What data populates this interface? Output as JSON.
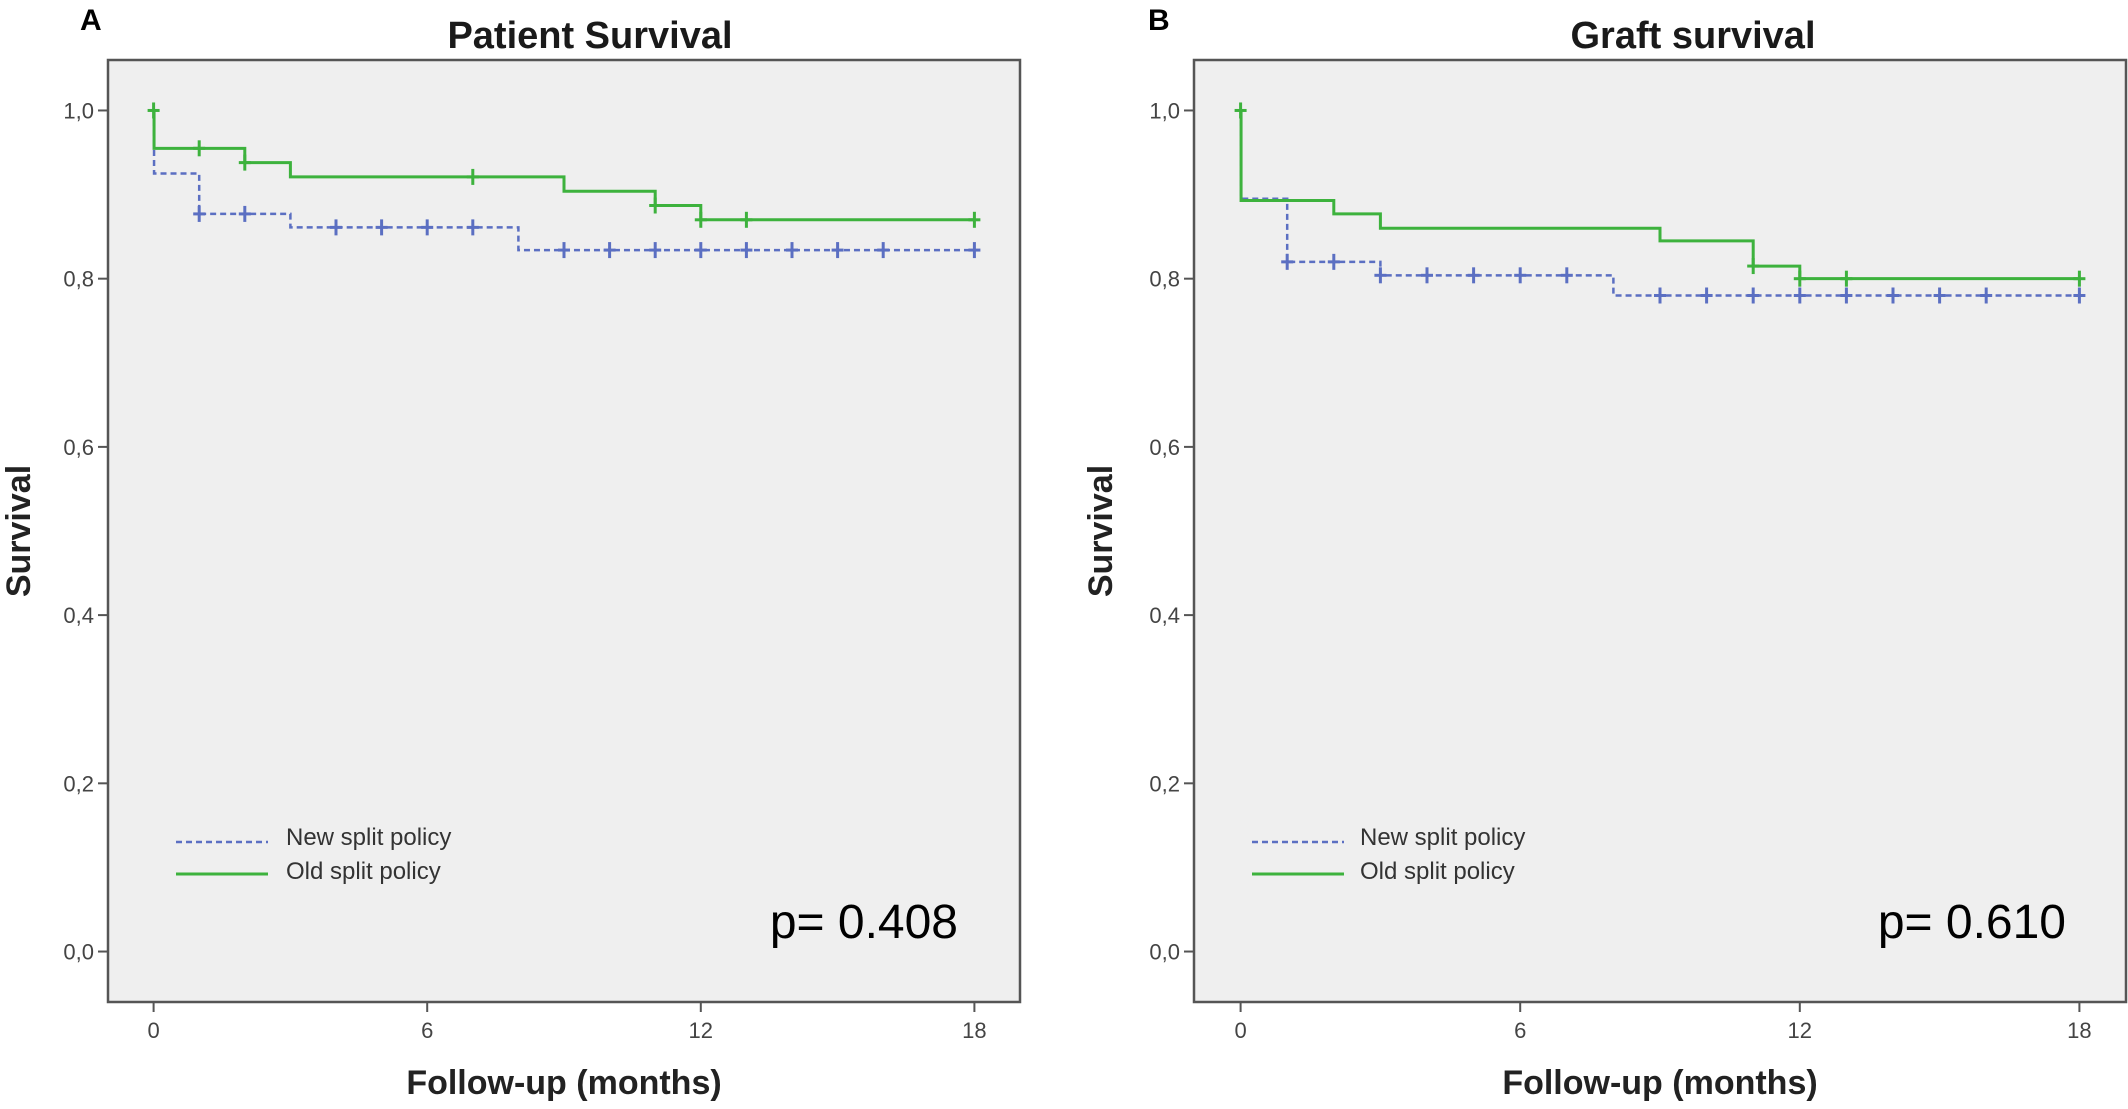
{
  "chart_data": [
    {
      "type": "line",
      "subtype": "kaplan-meier step",
      "panel": "A",
      "title": "Patient Survival",
      "xlabel": "Follow-up (months)",
      "ylabel": "Survival",
      "xlim": [
        -1,
        19
      ],
      "ylim": [
        -0.06,
        1.06
      ],
      "xticks": [
        0,
        6,
        12,
        18
      ],
      "xtick_labels": [
        "0",
        "6",
        "12",
        "18"
      ],
      "yticks": [
        0,
        0.2,
        0.4,
        0.6,
        0.8,
        1.0
      ],
      "ytick_labels": [
        "0,0",
        "0,2",
        "0,4",
        "0,6",
        "0,8",
        "1,0"
      ],
      "grid": false,
      "legend_position": "bottom-left",
      "annotation": "p= 0.408",
      "series": [
        {
          "name": "New split policy",
          "style": "dashed",
          "color": "#5b6fc2",
          "steps": [
            [
              0,
              1.0
            ],
            [
              0.01,
              0.925
            ],
            [
              1,
              0.877
            ],
            [
              3,
              0.861
            ],
            [
              8,
              0.834
            ],
            [
              18,
              0.834
            ]
          ],
          "censored": [
            [
              1,
              0.877
            ],
            [
              2,
              0.877
            ],
            [
              4,
              0.861
            ],
            [
              5,
              0.861
            ],
            [
              6,
              0.861
            ],
            [
              7,
              0.861
            ],
            [
              9,
              0.834
            ],
            [
              10,
              0.834
            ],
            [
              11,
              0.834
            ],
            [
              12,
              0.834
            ],
            [
              13,
              0.834
            ],
            [
              14,
              0.834
            ],
            [
              15,
              0.834
            ],
            [
              16,
              0.834
            ],
            [
              18,
              0.834
            ]
          ]
        },
        {
          "name": "Old split policy",
          "style": "solid",
          "color": "#3db23d",
          "steps": [
            [
              0,
              1.0
            ],
            [
              0.01,
              0.955
            ],
            [
              2,
              0.938
            ],
            [
              3,
              0.921
            ],
            [
              9,
              0.904
            ],
            [
              11,
              0.887
            ],
            [
              12,
              0.87
            ],
            [
              18,
              0.87
            ]
          ],
          "censored": [
            [
              0,
              1.0
            ],
            [
              1,
              0.955
            ],
            [
              2,
              0.938
            ],
            [
              7,
              0.921
            ],
            [
              11,
              0.887
            ],
            [
              12,
              0.87
            ],
            [
              13,
              0.87
            ],
            [
              18,
              0.87
            ]
          ]
        }
      ]
    },
    {
      "type": "line",
      "subtype": "kaplan-meier step",
      "panel": "B",
      "title": "Graft survival",
      "xlabel": "Follow-up (months)",
      "ylabel": "Survival",
      "xlim": [
        -1,
        19
      ],
      "ylim": [
        -0.06,
        1.06
      ],
      "xticks": [
        0,
        6,
        12,
        18
      ],
      "xtick_labels": [
        "0",
        "6",
        "12",
        "18"
      ],
      "yticks": [
        0,
        0.2,
        0.4,
        0.6,
        0.8,
        1.0
      ],
      "ytick_labels": [
        "0,0",
        "0,2",
        "0,4",
        "0,6",
        "0,8",
        "1,0"
      ],
      "grid": false,
      "legend_position": "bottom-left",
      "annotation": "p= 0.610",
      "series": [
        {
          "name": "New split policy",
          "style": "dashed",
          "color": "#5b6fc2",
          "steps": [
            [
              0,
              1.0
            ],
            [
              0.01,
              0.895
            ],
            [
              1,
              0.82
            ],
            [
              3,
              0.804
            ],
            [
              8,
              0.78
            ],
            [
              18,
              0.78
            ]
          ],
          "censored": [
            [
              1,
              0.82
            ],
            [
              2,
              0.82
            ],
            [
              3,
              0.804
            ],
            [
              4,
              0.804
            ],
            [
              5,
              0.804
            ],
            [
              6,
              0.804
            ],
            [
              7,
              0.804
            ],
            [
              9,
              0.78
            ],
            [
              10,
              0.78
            ],
            [
              11,
              0.78
            ],
            [
              12,
              0.78
            ],
            [
              13,
              0.78
            ],
            [
              14,
              0.78
            ],
            [
              15,
              0.78
            ],
            [
              16,
              0.78
            ],
            [
              18,
              0.78
            ]
          ]
        },
        {
          "name": "Old split policy",
          "style": "solid",
          "color": "#3db23d",
          "steps": [
            [
              0,
              1.0
            ],
            [
              0.01,
              0.893
            ],
            [
              2,
              0.877
            ],
            [
              3,
              0.86
            ],
            [
              9,
              0.845
            ],
            [
              11,
              0.815
            ],
            [
              12,
              0.8
            ],
            [
              18,
              0.8
            ]
          ],
          "censored": [
            [
              0,
              1.0
            ],
            [
              11,
              0.815
            ],
            [
              12,
              0.8
            ],
            [
              13,
              0.8
            ],
            [
              18,
              0.8
            ]
          ]
        }
      ]
    }
  ],
  "colors": {
    "plot_background": "#efefef",
    "frame": "#555555",
    "new_policy": "#5b6fc2",
    "old_policy": "#3db23d"
  }
}
